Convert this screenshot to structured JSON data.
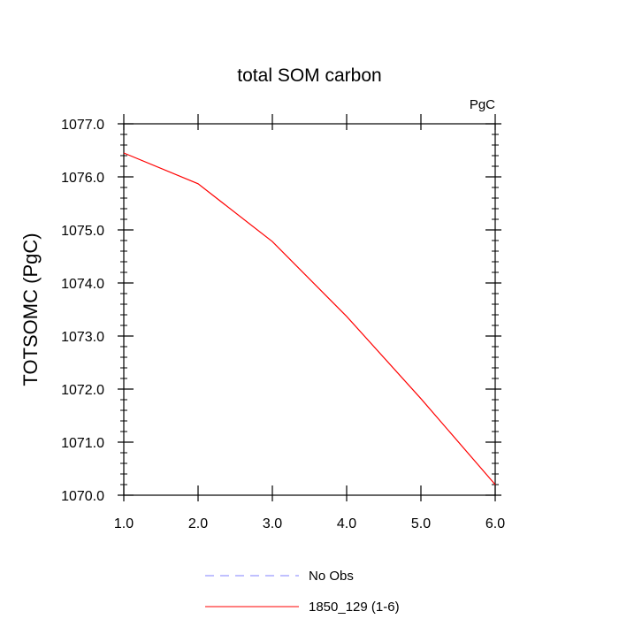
{
  "chart_data": {
    "type": "line",
    "title": "total SOM carbon",
    "units_label": "PgC",
    "xlabel": "",
    "ylabel": "TOTSOMC  (PgC)",
    "xlim": [
      1.0,
      6.0
    ],
    "ylim": [
      1070.0,
      1077.0
    ],
    "x_ticks": [
      1.0,
      2.0,
      3.0,
      4.0,
      5.0,
      6.0
    ],
    "x_tick_labels": [
      "1.0",
      "2.0",
      "3.0",
      "4.0",
      "5.0",
      "6.0"
    ],
    "y_ticks": [
      1070.0,
      1071.0,
      1072.0,
      1073.0,
      1074.0,
      1075.0,
      1076.0,
      1077.0
    ],
    "y_tick_labels": [
      "1070.0",
      "1071.0",
      "1072.0",
      "1073.0",
      "1074.0",
      "1075.0",
      "1076.0",
      "1077.0"
    ],
    "grid": false,
    "legend_position": "bottom-center",
    "series": [
      {
        "name": "1850_129 (1-6)",
        "color": "#ff0000",
        "dash": "solid",
        "x": [
          1.0,
          2.0,
          3.0,
          4.0,
          5.0,
          6.0
        ],
        "values": [
          1076.45,
          1075.87,
          1074.78,
          1073.37,
          1071.82,
          1070.2
        ]
      }
    ],
    "legend": [
      {
        "label": "No Obs",
        "color": "#8080ff",
        "dash": "dashed"
      },
      {
        "label": "1850_129 (1-6)",
        "color": "#ff0000",
        "dash": "solid"
      }
    ]
  }
}
